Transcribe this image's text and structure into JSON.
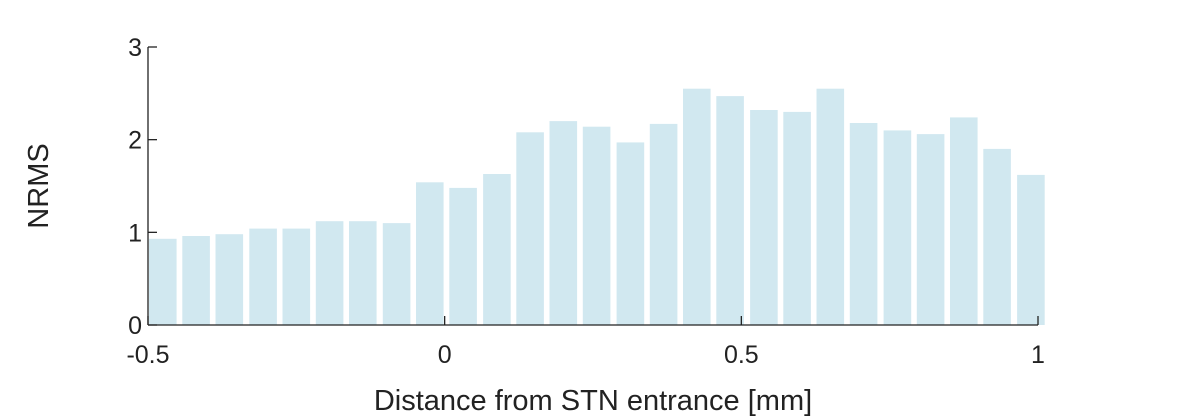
{
  "chart_data": {
    "type": "bar",
    "title": "",
    "xlabel": "Distance from STN entrance [mm]",
    "ylabel": "NRMS",
    "xlim": [
      -0.5,
      1
    ],
    "ylim": [
      0,
      3
    ],
    "xticks": [
      -0.5,
      0,
      0.5,
      1
    ],
    "xtick_labels": [
      "-0.5",
      "0",
      "0.5",
      "1"
    ],
    "yticks": [
      0,
      1,
      2,
      3
    ],
    "ytick_labels": [
      "0",
      "1",
      "2",
      "3"
    ],
    "grid": false,
    "bar_color": "#d1e8f0",
    "x": [
      -0.475,
      -0.419,
      -0.363,
      -0.306,
      -0.25,
      -0.194,
      -0.138,
      -0.081,
      -0.025,
      0.031,
      0.088,
      0.144,
      0.2,
      0.256,
      0.313,
      0.369,
      0.425,
      0.481,
      0.538,
      0.594,
      0.65,
      0.706,
      0.763,
      0.819,
      0.875,
      0.931,
      0.988
    ],
    "values": [
      0.93,
      0.96,
      0.98,
      1.04,
      1.04,
      1.12,
      1.12,
      1.1,
      1.54,
      1.48,
      1.63,
      2.08,
      2.2,
      2.14,
      1.97,
      2.17,
      2.55,
      2.47,
      2.32,
      2.3,
      2.55,
      2.18,
      2.1,
      2.06,
      2.24,
      1.9,
      1.62
    ]
  }
}
